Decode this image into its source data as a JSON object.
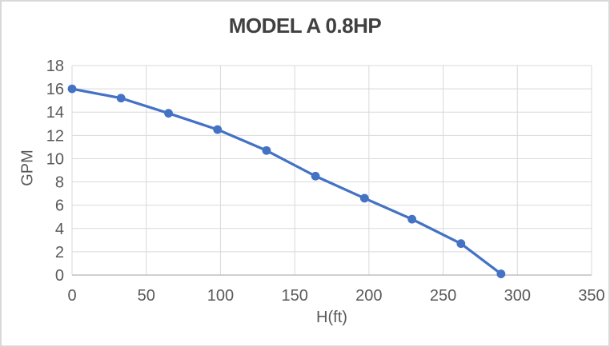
{
  "window": {
    "background": "#FFFFFF",
    "border_color": "#D9D9D9"
  },
  "chart_data": {
    "type": "line",
    "title": "MODEL A 0.8HP",
    "xlabel": "H(ft)",
    "ylabel": "GPM",
    "x": [
      0,
      33,
      65,
      98,
      131,
      164,
      197,
      229,
      262,
      289
    ],
    "series": [
      {
        "name": "MODEL A 0.8HP",
        "values": [
          16,
          15.2,
          13.9,
          12.5,
          10.7,
          8.5,
          6.6,
          4.8,
          2.7,
          0.1
        ]
      }
    ],
    "xlim": [
      0,
      350
    ],
    "ylim": [
      0,
      18
    ],
    "xticks": [
      0,
      50,
      100,
      150,
      200,
      250,
      300,
      350
    ],
    "yticks": [
      0,
      2,
      4,
      6,
      8,
      10,
      12,
      14,
      16,
      18
    ],
    "grid": true,
    "legend": "none",
    "marker": "circle",
    "colors": {
      "series": "#4472C4",
      "gridline": "#D9D9D9",
      "axis_line": "#BFBFBF",
      "tick_text": "#595959",
      "title_text": "#404040",
      "axis_title_text": "#595959"
    }
  }
}
